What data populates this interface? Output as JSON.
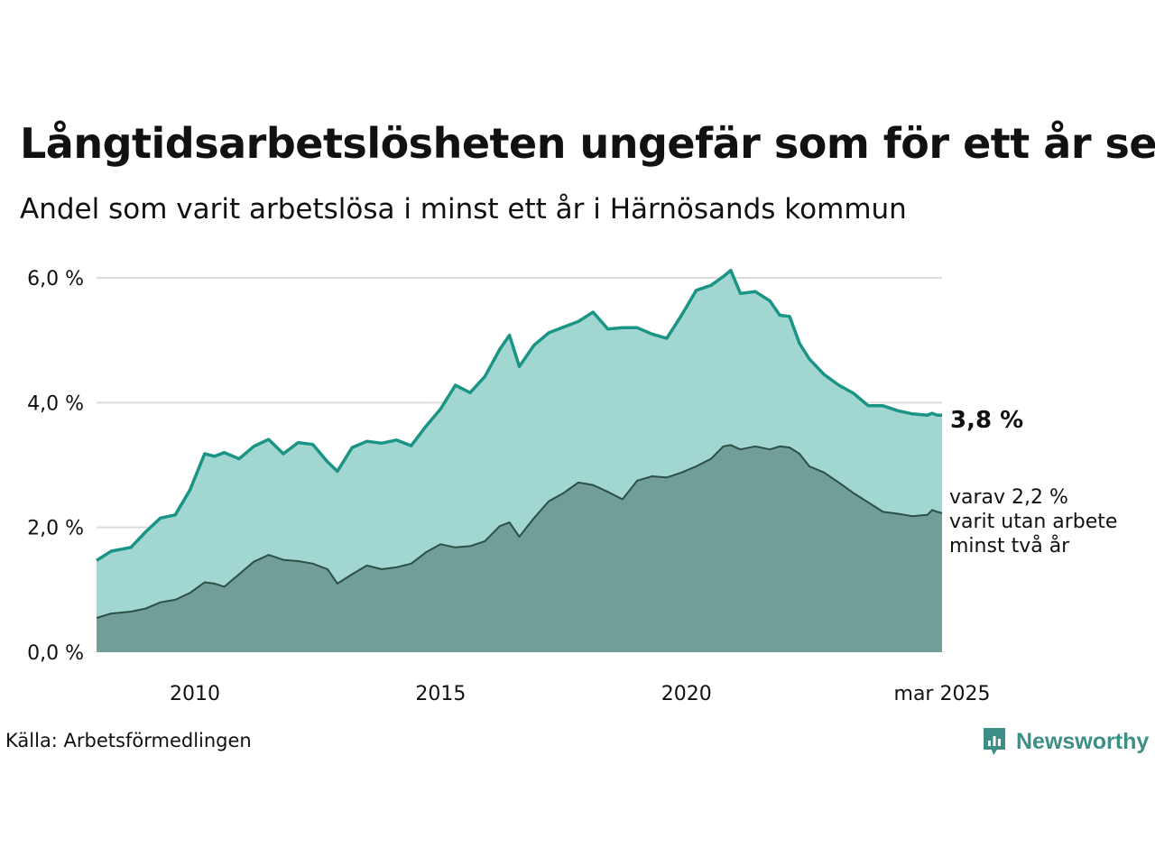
{
  "title": "Långtidsarbetslösheten ungefär som för ett år sen",
  "subtitle": "Andel som varit arbetslösa i minst ett år i Härnösands kommun",
  "source": "Källa: Arbetsförmedlingen",
  "brand": "Newsworthy",
  "colors": {
    "upper_line": "#1a9485",
    "upper_fill": "#a2d6d0",
    "lower_line": "#2c4f47",
    "lower_fill": "#719e97",
    "grid": "#dcdcdc",
    "brand": "#3d8e86"
  },
  "chart_data": {
    "type": "area",
    "xlim": [
      2008.0,
      2025.2
    ],
    "ylim": [
      0,
      6
    ],
    "y_ticks": [
      {
        "value": 0,
        "label": "0,0 %"
      },
      {
        "value": 2,
        "label": "2,0 %"
      },
      {
        "value": 4,
        "label": "4,0 %"
      },
      {
        "value": 6,
        "label": "6,0 %"
      }
    ],
    "x_ticks": [
      {
        "value": 2010.0,
        "label": "2010"
      },
      {
        "value": 2015.0,
        "label": "2015"
      },
      {
        "value": 2020.0,
        "label": "2020"
      },
      {
        "value": 2025.2,
        "label": "mar 2025"
      }
    ],
    "grid": "horizontal",
    "end_labels": {
      "upper": "3,8 %",
      "lower": [
        "varav 2,2 %",
        "varit utan arbete",
        "minst två år"
      ]
    },
    "series": [
      {
        "key": "upper",
        "x": [
          2008.0,
          2008.3,
          2008.7,
          2009.0,
          2009.3,
          2009.6,
          2009.9,
          2010.2,
          2010.4,
          2010.6,
          2010.9,
          2011.2,
          2011.5,
          2011.8,
          2012.1,
          2012.4,
          2012.7,
          2012.9,
          2013.2,
          2013.5,
          2013.8,
          2014.1,
          2014.4,
          2014.7,
          2015.0,
          2015.3,
          2015.6,
          2015.9,
          2016.2,
          2016.4,
          2016.6,
          2016.9,
          2017.2,
          2017.5,
          2017.8,
          2018.1,
          2018.4,
          2018.7,
          2019.0,
          2019.3,
          2019.6,
          2019.9,
          2020.2,
          2020.5,
          2020.75,
          2020.9,
          2021.1,
          2021.4,
          2021.7,
          2021.9,
          2022.1,
          2022.3,
          2022.5,
          2022.8,
          2023.1,
          2023.4,
          2023.7,
          2024.0,
          2024.3,
          2024.6,
          2024.9,
          2025.0,
          2025.1,
          2025.2
        ],
        "values": [
          1.47,
          1.62,
          1.68,
          1.93,
          2.15,
          2.2,
          2.6,
          3.18,
          3.14,
          3.2,
          3.1,
          3.3,
          3.41,
          3.18,
          3.36,
          3.33,
          3.05,
          2.9,
          3.28,
          3.38,
          3.35,
          3.4,
          3.31,
          3.62,
          3.9,
          4.28,
          4.16,
          4.42,
          4.85,
          5.08,
          4.58,
          4.92,
          5.12,
          5.21,
          5.3,
          5.45,
          5.18,
          5.2,
          5.2,
          5.1,
          5.03,
          5.4,
          5.8,
          5.88,
          6.02,
          6.12,
          5.75,
          5.78,
          5.63,
          5.4,
          5.38,
          4.95,
          4.7,
          4.45,
          4.28,
          4.15,
          3.95,
          3.95,
          3.87,
          3.82,
          3.8,
          3.83,
          3.8,
          3.8
        ]
      },
      {
        "key": "lower",
        "x": [
          2008.0,
          2008.3,
          2008.7,
          2009.0,
          2009.3,
          2009.6,
          2009.9,
          2010.2,
          2010.4,
          2010.6,
          2010.9,
          2011.2,
          2011.5,
          2011.8,
          2012.1,
          2012.4,
          2012.7,
          2012.9,
          2013.2,
          2013.5,
          2013.8,
          2014.1,
          2014.4,
          2014.7,
          2015.0,
          2015.3,
          2015.6,
          2015.9,
          2016.2,
          2016.4,
          2016.6,
          2016.9,
          2017.2,
          2017.5,
          2017.8,
          2018.1,
          2018.4,
          2018.7,
          2019.0,
          2019.3,
          2019.6,
          2019.9,
          2020.2,
          2020.5,
          2020.75,
          2020.9,
          2021.1,
          2021.4,
          2021.7,
          2021.9,
          2022.1,
          2022.3,
          2022.5,
          2022.8,
          2023.1,
          2023.4,
          2023.7,
          2024.0,
          2024.3,
          2024.6,
          2024.9,
          2025.0,
          2025.1,
          2025.2
        ],
        "values": [
          0.55,
          0.62,
          0.65,
          0.7,
          0.8,
          0.84,
          0.95,
          1.12,
          1.1,
          1.05,
          1.25,
          1.45,
          1.56,
          1.48,
          1.46,
          1.42,
          1.33,
          1.1,
          1.25,
          1.39,
          1.33,
          1.36,
          1.42,
          1.6,
          1.73,
          1.68,
          1.7,
          1.78,
          2.02,
          2.08,
          1.85,
          2.15,
          2.42,
          2.55,
          2.72,
          2.68,
          2.57,
          2.45,
          2.75,
          2.82,
          2.8,
          2.88,
          2.98,
          3.1,
          3.3,
          3.32,
          3.25,
          3.3,
          3.25,
          3.3,
          3.28,
          3.18,
          2.98,
          2.88,
          2.72,
          2.55,
          2.4,
          2.25,
          2.22,
          2.18,
          2.2,
          2.28,
          2.25,
          2.23
        ]
      }
    ]
  }
}
